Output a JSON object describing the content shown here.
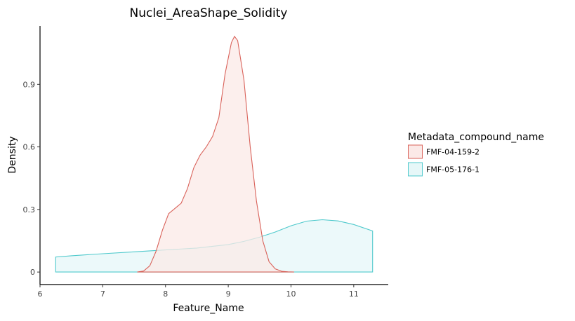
{
  "chart_data": {
    "type": "area",
    "title": "Nuclei_AreaShape_Solidity",
    "xlabel": "Feature_Name",
    "ylabel": "Density",
    "xlim": [
      6,
      11.55
    ],
    "ylim": [
      -0.06,
      1.18
    ],
    "x_ticks": [
      6,
      7,
      8,
      9,
      10,
      11
    ],
    "y_ticks": [
      0,
      0.3,
      0.6,
      0.9
    ],
    "x_tick_labels": [
      "6",
      "7",
      "8",
      "9",
      "10",
      "11"
    ],
    "y_tick_labels": [
      "0",
      "0.3",
      "0.6",
      "0.9"
    ],
    "grid": false,
    "legend": {
      "title": "Metadata_compound_name",
      "position": "right"
    },
    "series": [
      {
        "name": "FMF-04-159-2",
        "line_color": "#d9625a",
        "fill_color": "#fbe9e7",
        "x": [
          7.55,
          7.65,
          7.75,
          7.85,
          7.95,
          8.05,
          8.15,
          8.25,
          8.35,
          8.45,
          8.55,
          8.65,
          8.75,
          8.85,
          8.95,
          9.05,
          9.1,
          9.15,
          9.25,
          9.35,
          9.45,
          9.55,
          9.65,
          9.75,
          9.85,
          9.95,
          10.05
        ],
        "values": [
          0,
          0.005,
          0.03,
          0.1,
          0.2,
          0.28,
          0.305,
          0.33,
          0.4,
          0.5,
          0.56,
          0.6,
          0.65,
          0.74,
          0.95,
          1.1,
          1.13,
          1.11,
          0.92,
          0.6,
          0.34,
          0.15,
          0.05,
          0.015,
          0.004,
          0.001,
          0
        ]
      },
      {
        "name": "FMF-05-176-1",
        "line_color": "#4ec9cc",
        "fill_color": "#e6f7f8",
        "x": [
          6.25,
          6.5,
          7,
          7.5,
          8,
          8.5,
          9,
          9.25,
          9.5,
          9.75,
          10,
          10.25,
          10.5,
          10.75,
          11,
          11.3
        ],
        "values": [
          0.072,
          0.078,
          0.088,
          0.097,
          0.106,
          0.115,
          0.132,
          0.147,
          0.167,
          0.192,
          0.222,
          0.244,
          0.251,
          0.245,
          0.228,
          0.197
        ]
      }
    ]
  }
}
